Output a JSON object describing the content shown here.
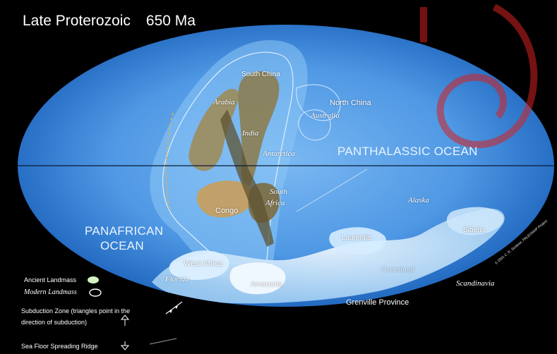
{
  "title": {
    "text": "Late Proterozoic",
    "age": "650 Ma"
  },
  "oceans": {
    "panthalassic": "PANTHALASSIC OCEAN",
    "panafrican_line1": "PANAFRICAN",
    "panafrican_line2": "OCEAN"
  },
  "labels": {
    "south_china": "South China",
    "arabia": "Arabia",
    "australia": "Australia",
    "north_china": "North China",
    "india": "India",
    "antarctica": "Antarctica",
    "south_africa_1": "South",
    "south_africa_2": "Africa",
    "congo": "Congo",
    "alaska": "Alaska",
    "siberia": "Siberia",
    "laurentia": "Laurentia",
    "greenland": "Greenland",
    "west_africa": "West Africa",
    "florida": "Florida",
    "amazonia": "Amazonia",
    "scandinavia": "Scandinavia",
    "grenville": "Grenville Province"
  },
  "legend": {
    "ancient": "Ancient Landmass",
    "modern": "Modern Landmass",
    "subduction_1": "Subduction Zone  (triangles point in the",
    "subduction_2": "direction of subduction)",
    "ridge": "Sea Floor Spreading Ridge"
  },
  "credit": "© 2001  C. R. Scotese, PALEOMAP Project",
  "colors": {
    "ocean_light": "#6fb2f0",
    "ocean_dark": "#1a5fb8",
    "ancient_land": "#a08a52",
    "modern_land": "#cfe6fb",
    "watermark": "#d62020"
  }
}
